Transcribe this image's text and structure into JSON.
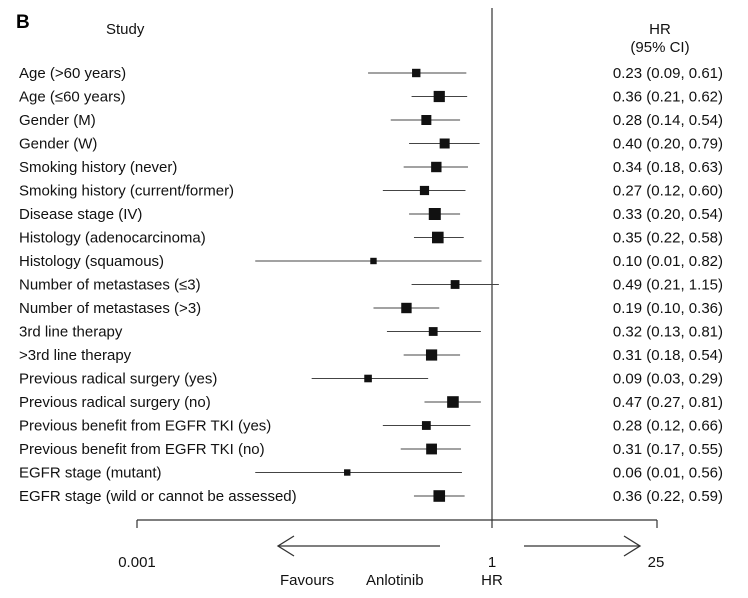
{
  "panel_label": "B",
  "headers": {
    "study": "Study",
    "hr": "HR",
    "ci": "(95% CI)"
  },
  "footer": {
    "tick_low": "0.001",
    "tick_ref": "1",
    "tick_high": "25",
    "axis_label": "HR",
    "favours_word": "Favours",
    "favours_drug": "Anlotinib"
  },
  "chart_data": {
    "type": "forest",
    "scale": "log",
    "xlim": [
      0.001,
      25
    ],
    "reference_line": 1,
    "xlabel": "HR",
    "ticks": [
      0.001,
      1,
      25
    ],
    "rows": [
      {
        "study": "Age (>60 years)",
        "hr": 0.23,
        "lo": 0.09,
        "hi": 0.61,
        "text": "0.23 (0.09, 0.61)",
        "weight": 0.55
      },
      {
        "study": "Age (≤60 years)",
        "hr": 0.36,
        "lo": 0.21,
        "hi": 0.62,
        "text": "0.36 (0.21, 0.62)",
        "weight": 0.9
      },
      {
        "study": "Gender (M)",
        "hr": 0.28,
        "lo": 0.14,
        "hi": 0.54,
        "text": "0.28 (0.14, 0.54)",
        "weight": 0.75
      },
      {
        "study": "Gender (W)",
        "hr": 0.4,
        "lo": 0.2,
        "hi": 0.79,
        "text": "0.40 (0.20, 0.79)",
        "weight": 0.75
      },
      {
        "study": "Smoking history (never)",
        "hr": 0.34,
        "lo": 0.18,
        "hi": 0.63,
        "text": "0.34 (0.18, 0.63)",
        "weight": 0.8
      },
      {
        "study": "Smoking history (current/former)",
        "hr": 0.27,
        "lo": 0.12,
        "hi": 0.6,
        "text": "0.27 (0.12, 0.60)",
        "weight": 0.65
      },
      {
        "study": "Disease stage (IV)",
        "hr": 0.33,
        "lo": 0.2,
        "hi": 0.54,
        "text": "0.33 (0.20, 0.54)",
        "weight": 1.0
      },
      {
        "study": "Histology (adenocarcinoma)",
        "hr": 0.35,
        "lo": 0.22,
        "hi": 0.58,
        "text": "0.35 (0.22, 0.58)",
        "weight": 0.95
      },
      {
        "study": "Histology (squamous)",
        "hr": 0.1,
        "lo": 0.01,
        "hi": 0.82,
        "text": "0.10 (0.01, 0.82)",
        "weight": 0.3
      },
      {
        "study": "Number of metastases (≤3)",
        "hr": 0.49,
        "lo": 0.21,
        "hi": 1.15,
        "text": "0.49 (0.21, 1.15)",
        "weight": 0.6
      },
      {
        "study": "Number of metastases (>3)",
        "hr": 0.19,
        "lo": 0.1,
        "hi": 0.36,
        "text": "0.19 (0.10, 0.36)",
        "weight": 0.8
      },
      {
        "study": "3rd line therapy",
        "hr": 0.32,
        "lo": 0.13,
        "hi": 0.81,
        "text": "0.32 (0.13, 0.81)",
        "weight": 0.6
      },
      {
        "study": ">3rd line therapy",
        "hr": 0.31,
        "lo": 0.18,
        "hi": 0.54,
        "text": "0.31 (0.18, 0.54)",
        "weight": 0.9
      },
      {
        "study": "Previous radical surgery (yes)",
        "hr": 0.09,
        "lo": 0.03,
        "hi": 0.29,
        "text": "0.09 (0.03, 0.29)",
        "weight": 0.45
      },
      {
        "study": "Previous radical surgery (no)",
        "hr": 0.47,
        "lo": 0.27,
        "hi": 0.81,
        "text": "0.47 (0.27, 0.81)",
        "weight": 0.95
      },
      {
        "study": "Previous benefit from EGFR TKI (yes)",
        "hr": 0.28,
        "lo": 0.12,
        "hi": 0.66,
        "text": "0.28 (0.12, 0.66)",
        "weight": 0.6
      },
      {
        "study": "Previous benefit from EGFR TKI (no)",
        "hr": 0.31,
        "lo": 0.17,
        "hi": 0.55,
        "text": "0.31 (0.17, 0.55)",
        "weight": 0.85
      },
      {
        "study": "EGFR stage (mutant)",
        "hr": 0.06,
        "lo": 0.01,
        "hi": 0.56,
        "text": "0.06 (0.01, 0.56)",
        "weight": 0.3
      },
      {
        "study": "EGFR stage (wild or cannot be assessed)",
        "hr": 0.36,
        "lo": 0.22,
        "hi": 0.59,
        "text": "0.36 (0.22, 0.59)",
        "weight": 0.95
      }
    ]
  }
}
